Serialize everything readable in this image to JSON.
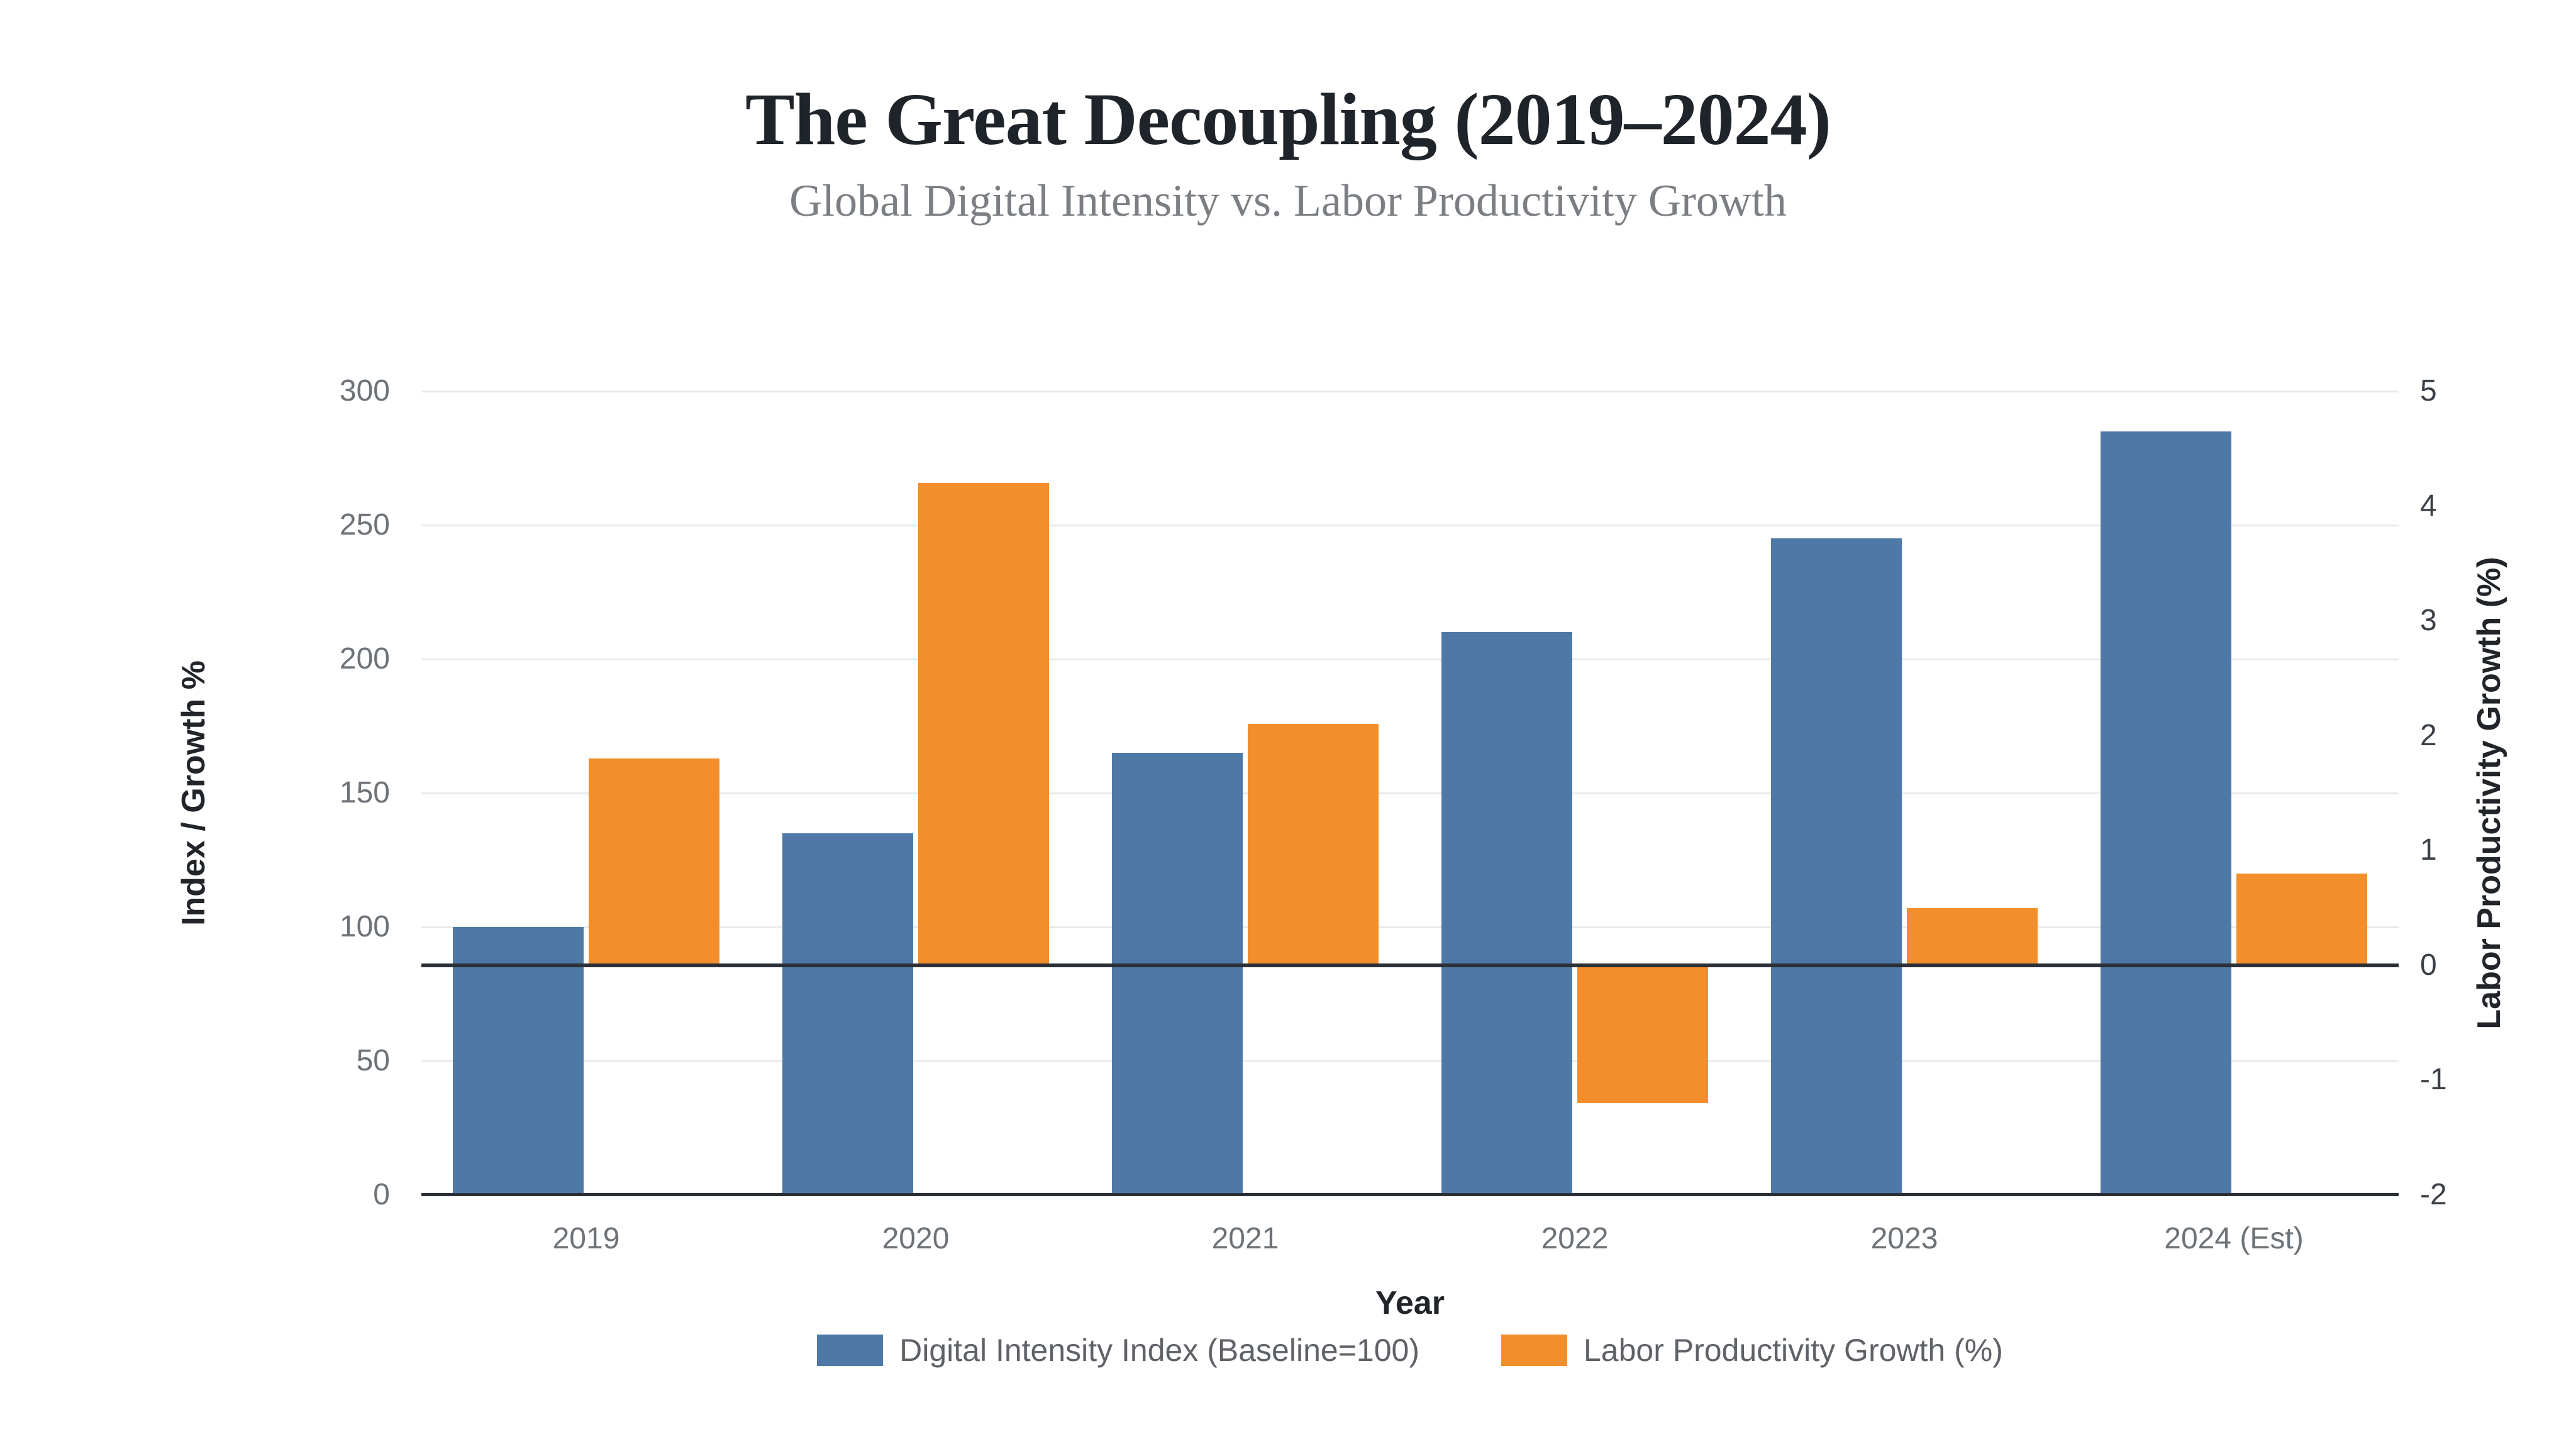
{
  "header": {
    "title": "The Great Decoupling (2019–2024)",
    "subtitle": "Global Digital Intensity vs. Labor Productivity Growth"
  },
  "chart_data": {
    "type": "bar",
    "categories": [
      "2019",
      "2020",
      "2021",
      "2022",
      "2023",
      "2024 (Est)"
    ],
    "series": [
      {
        "name": "Digital Intensity Index (Baseline=100)",
        "axis": "left",
        "color": "#4e79a7",
        "values": [
          100,
          135,
          165,
          210,
          245,
          285
        ]
      },
      {
        "name": "Labor Productivity Growth (%)",
        "axis": "right",
        "color": "#f28e2b",
        "values": [
          1.8,
          4.2,
          2.1,
          -1.2,
          0.5,
          0.8
        ]
      }
    ],
    "title": "The Great Decoupling (2019–2024)",
    "subtitle": "Global Digital Intensity vs. Labor Productivity Growth",
    "xlabel": "Year",
    "ylabel_left": "Index / Growth %",
    "ylabel_right": "Labor Productivity Growth (%)",
    "left_axis": {
      "min": 0,
      "max": 300,
      "ticks": [
        300,
        250,
        200,
        150,
        100,
        50,
        0
      ]
    },
    "right_axis": {
      "min": -2,
      "max": 5,
      "ticks": [
        5,
        4,
        3,
        2,
        1,
        0,
        -1,
        -2
      ]
    },
    "grid": true,
    "legend_position": "bottom-center",
    "zero_line": true
  },
  "colors": {
    "digital_intensity_blue": "#4e79a7",
    "productivity_orange": "#f28e2b",
    "gridline": "#e8eaed",
    "axis_line_dark": "#2b3036",
    "tick_gray": "#6d7277"
  }
}
